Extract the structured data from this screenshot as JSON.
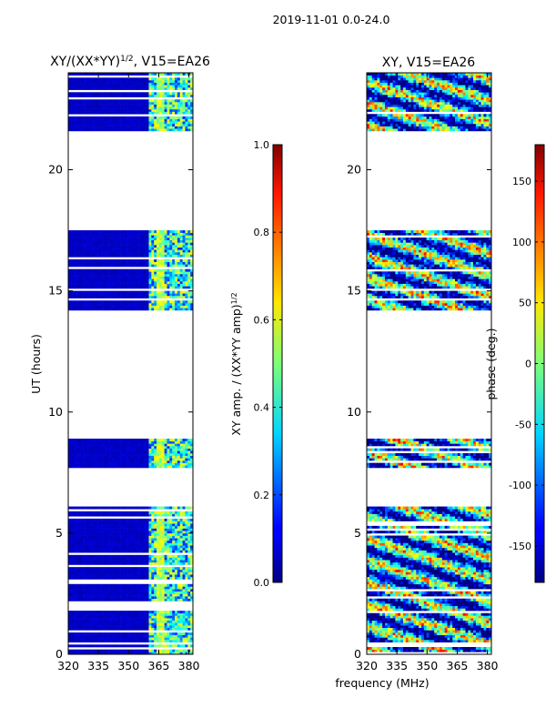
{
  "suptitle": "2019-11-01 0.0-24.0",
  "chart_data": [
    {
      "type": "heatmap",
      "title": "XY/(XX*YY)",
      "title_superscript": "1/2",
      "title_suffix": ", V15=EA26",
      "xlabel": "",
      "ylabel": "UT (hours)",
      "xlim": [
        320,
        382
      ],
      "ylim": [
        0,
        24
      ],
      "xticks": [
        320,
        335,
        350,
        365,
        380
      ],
      "yticks": [
        0,
        5,
        10,
        15,
        20
      ],
      "data_bands_hours": [
        [
          0.0,
          6.1
        ],
        [
          7.7,
          8.9
        ],
        [
          14.2,
          17.5
        ],
        [
          21.6,
          24.0
        ]
      ],
      "bright_channel_range_mhz": [
        360,
        382
      ],
      "background_value": 0.05,
      "peak_value": 0.6
    },
    {
      "type": "heatmap",
      "title": "XY, V15=EA26",
      "xlabel": "frequency (MHz)",
      "ylabel": "",
      "xlim": [
        320,
        382
      ],
      "ylim": [
        0,
        24
      ],
      "xticks": [
        320,
        335,
        350,
        365,
        380
      ],
      "yticks": [
        0,
        5,
        10,
        15,
        20
      ],
      "data_bands_hours": [
        [
          0.0,
          6.1
        ],
        [
          7.7,
          8.9
        ],
        [
          14.2,
          17.5
        ],
        [
          21.6,
          24.0
        ]
      ],
      "value_range_deg": [
        -180,
        180
      ]
    }
  ],
  "colorbars": [
    {
      "label": "XY amp. / (XX*YY amp)",
      "label_superscript": "1/2",
      "range": [
        0.0,
        1.0
      ],
      "ticks": [
        "0.0",
        "0.2",
        "0.4",
        "0.6",
        "0.8",
        "1.0"
      ],
      "tick_values": [
        0.0,
        0.2,
        0.4,
        0.6,
        0.8,
        1.0
      ]
    },
    {
      "label": "phase (deg.)",
      "range": [
        -180,
        180
      ],
      "ticks": [
        "-150",
        "-100",
        "-50",
        "0",
        "50",
        "100",
        "150"
      ],
      "tick_values": [
        -150,
        -100,
        -50,
        0,
        50,
        100,
        150
      ]
    }
  ]
}
